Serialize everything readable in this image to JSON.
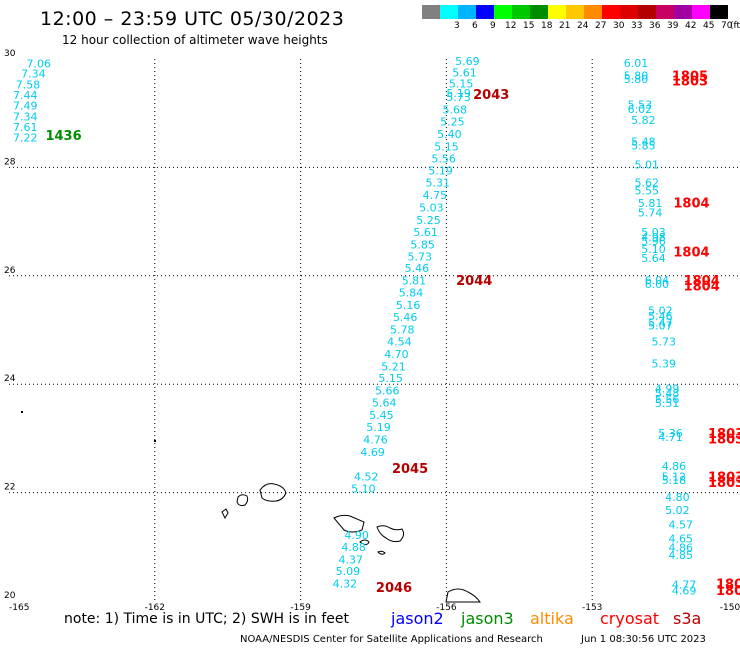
{
  "header": {
    "title": "12:00 – 23:59 UTC 05/30/2023",
    "subtitle": "12 hour collection of altimeter wave heights"
  },
  "legend": {
    "unit": "(ft)",
    "bins": [
      {
        "label": "",
        "color": "#808080"
      },
      {
        "label": "3",
        "color": "#00ffff"
      },
      {
        "label": "6",
        "color": "#00b4ff"
      },
      {
        "label": "9",
        "color": "#0000ff"
      },
      {
        "label": "12",
        "color": "#00ff00"
      },
      {
        "label": "15",
        "color": "#00c800"
      },
      {
        "label": "18",
        "color": "#008c00"
      },
      {
        "label": "21",
        "color": "#ffff00"
      },
      {
        "label": "24",
        "color": "#ffc800"
      },
      {
        "label": "27",
        "color": "#ff8c00"
      },
      {
        "label": "30",
        "color": "#ff0000"
      },
      {
        "label": "33",
        "color": "#dc0000"
      },
      {
        "label": "36",
        "color": "#b40000"
      },
      {
        "label": "39",
        "color": "#c80064"
      },
      {
        "label": "42",
        "color": "#a000a0"
      },
      {
        "label": "45",
        "color": "#ff00ff"
      },
      {
        "label": "70",
        "color": "#000000"
      }
    ]
  },
  "map": {
    "lon_range": [
      -165,
      -150
    ],
    "lat_range": [
      20,
      30
    ],
    "lon_ticks": [
      "-165",
      "-162",
      "-159",
      "-156",
      "-153",
      "-150"
    ],
    "lat_ticks": [
      "30",
      "28",
      "26",
      "24",
      "22",
      "20"
    ],
    "grid": "dotted",
    "colors": {
      "swh_text": "#00ccee",
      "jason2": "#0000ff",
      "jason3": "#008c00",
      "altika": "#ff8c00",
      "cryosat": "#ff0000",
      "s3a": "#b40000"
    },
    "tracks": [
      {
        "name": "jason3 1436",
        "color": "#00ccee",
        "label": {
          "text": "1436",
          "lon": -164.25,
          "lat": 28.6,
          "color": "#008c00"
        },
        "points": [
          {
            "v": "7.06",
            "lon": -164.64,
            "lat": 29.92
          },
          {
            "v": "7.34",
            "lon": -164.75,
            "lat": 29.73
          },
          {
            "v": "7.58",
            "lon": -164.86,
            "lat": 29.53
          },
          {
            "v": "7.44",
            "lon": -164.97,
            "lat": 29.34
          },
          {
            "v": "7.49",
            "lon": -165.07,
            "lat": 29.14
          },
          {
            "v": "7.34",
            "lon": -165.18,
            "lat": 28.94
          },
          {
            "v": "7.61",
            "lon": -165.29,
            "lat": 28.75
          },
          {
            "v": "7.22",
            "lon": -165.4,
            "lat": 28.55
          }
        ]
      },
      {
        "name": "s3a 2043-2046",
        "color": "#00ccee",
        "label_list": [
          {
            "text": "2043",
            "lon": -155.45,
            "lat": 29.35,
            "color": "#b40000"
          },
          {
            "text": "2044",
            "lon": -155.8,
            "lat": 25.92,
            "color": "#b40000"
          },
          {
            "text": "2045",
            "lon": -157.12,
            "lat": 22.45,
            "color": "#b40000"
          },
          {
            "text": "2046",
            "lon": -157.45,
            "lat": 20.26,
            "color": "#b40000"
          }
        ],
        "points": [
          {
            "v": "5.69",
            "lon": -155.82,
            "lat": 29.96
          },
          {
            "v": "5.61",
            "lon": -155.88,
            "lat": 29.75
          },
          {
            "v": "5.15",
            "lon": -155.95,
            "lat": 29.55
          },
          {
            "v": "5.19",
            "lon": -156.0,
            "lat": 29.37
          },
          {
            "v": "5.73",
            "lon": -156.0,
            "lat": 29.3
          },
          {
            "v": "5.68",
            "lon": -156.08,
            "lat": 29.07
          },
          {
            "v": "5.25",
            "lon": -156.13,
            "lat": 28.85
          },
          {
            "v": "5.40",
            "lon": -156.19,
            "lat": 28.62
          },
          {
            "v": "5.15",
            "lon": -156.25,
            "lat": 28.39
          },
          {
            "v": "5.56",
            "lon": -156.31,
            "lat": 28.16
          },
          {
            "v": "5.19",
            "lon": -156.37,
            "lat": 27.94
          },
          {
            "v": "5.31",
            "lon": -156.43,
            "lat": 27.72
          },
          {
            "v": "4.75",
            "lon": -156.49,
            "lat": 27.49
          },
          {
            "v": "5.03",
            "lon": -156.56,
            "lat": 27.26
          },
          {
            "v": "5.25",
            "lon": -156.62,
            "lat": 27.03
          },
          {
            "v": "5.61",
            "lon": -156.68,
            "lat": 26.81
          },
          {
            "v": "5.85",
            "lon": -156.74,
            "lat": 26.58
          },
          {
            "v": "5.73",
            "lon": -156.8,
            "lat": 26.36
          },
          {
            "v": "5.46",
            "lon": -156.86,
            "lat": 26.14
          },
          {
            "v": "5.81",
            "lon": -156.92,
            "lat": 25.91
          },
          {
            "v": "5.84",
            "lon": -156.98,
            "lat": 25.69
          },
          {
            "v": "5.16",
            "lon": -157.04,
            "lat": 25.46
          },
          {
            "v": "5.46",
            "lon": -157.1,
            "lat": 25.24
          },
          {
            "v": "5.78",
            "lon": -157.16,
            "lat": 25.01
          },
          {
            "v": "4.54",
            "lon": -157.22,
            "lat": 24.79
          },
          {
            "v": "4.70",
            "lon": -157.28,
            "lat": 24.56
          },
          {
            "v": "5.21",
            "lon": -157.34,
            "lat": 24.33
          },
          {
            "v": "5.15",
            "lon": -157.4,
            "lat": 24.11
          },
          {
            "v": "5.66",
            "lon": -157.47,
            "lat": 23.88
          },
          {
            "v": "5.64",
            "lon": -157.53,
            "lat": 23.66
          },
          {
            "v": "5.45",
            "lon": -157.59,
            "lat": 23.43
          },
          {
            "v": "5.19",
            "lon": -157.65,
            "lat": 23.21
          },
          {
            "v": "4.76",
            "lon": -157.71,
            "lat": 22.98
          },
          {
            "v": "4.69",
            "lon": -157.77,
            "lat": 22.75
          },
          {
            "v": "4.52",
            "lon": -157.9,
            "lat": 22.3
          },
          {
            "v": "5.10",
            "lon": -157.96,
            "lat": 22.08
          },
          {
            "v": "4.90",
            "lon": -158.1,
            "lat": 21.22
          },
          {
            "v": "4.88",
            "lon": -158.16,
            "lat": 21.0
          },
          {
            "v": "4.37",
            "lon": -158.22,
            "lat": 20.77
          },
          {
            "v": "5.09",
            "lon": -158.28,
            "lat": 20.55
          },
          {
            "v": "4.32",
            "lon": -158.34,
            "lat": 20.32
          }
        ]
      },
      {
        "name": "cryosat 1803-1805",
        "color": "#00ccee",
        "label_list": [
          {
            "text": "1805",
            "lon": -151.36,
            "lat": 29.7,
            "color": "#ff0000"
          },
          {
            "text": "1803",
            "lon": -151.36,
            "lat": 29.6,
            "color": "#ff0000"
          },
          {
            "text": "1804",
            "lon": -151.33,
            "lat": 27.35,
            "color": "#ff0000"
          },
          {
            "text": "1804",
            "lon": -151.33,
            "lat": 26.45,
            "color": "#ff0000"
          },
          {
            "text": "1804",
            "lon": -151.12,
            "lat": 25.92,
            "color": "#ff0000"
          },
          {
            "text": "1804",
            "lon": -151.12,
            "lat": 25.82,
            "color": "#ff0000"
          },
          {
            "text": "1803",
            "lon": -150.56,
            "lat": 23.1,
            "color": "#ff0000"
          },
          {
            "text": "1803",
            "lon": -150.56,
            "lat": 23.0,
            "color": "#ff0000"
          },
          {
            "text": "1803",
            "lon": -150.56,
            "lat": 22.3,
            "color": "#ff0000"
          },
          {
            "text": "1803",
            "lon": -150.56,
            "lat": 22.2,
            "color": "#ff0000"
          },
          {
            "text": "180",
            "lon": -150.25,
            "lat": 20.32,
            "color": "#ff0000"
          },
          {
            "text": "180",
            "lon": -150.25,
            "lat": 20.2,
            "color": "#ff0000"
          }
        ],
        "points": [
          {
            "v": "6.01",
            "lon": -152.35,
            "lat": 29.93
          },
          {
            "v": "5.80",
            "lon": -152.35,
            "lat": 29.7
          },
          {
            "v": "5.80",
            "lon": -152.35,
            "lat": 29.63
          },
          {
            "v": "5.53",
            "lon": -152.27,
            "lat": 29.16
          },
          {
            "v": "6.02",
            "lon": -152.27,
            "lat": 29.08
          },
          {
            "v": "5.82",
            "lon": -152.2,
            "lat": 28.87
          },
          {
            "v": "5.48",
            "lon": -152.2,
            "lat": 28.48
          },
          {
            "v": "5.85",
            "lon": -152.2,
            "lat": 28.4
          },
          {
            "v": "5.01",
            "lon": -152.13,
            "lat": 28.05
          },
          {
            "v": "5.62",
            "lon": -152.13,
            "lat": 27.72
          },
          {
            "v": "5.55",
            "lon": -152.13,
            "lat": 27.57
          },
          {
            "v": "5.81",
            "lon": -152.06,
            "lat": 27.34
          },
          {
            "v": "5.74",
            "lon": -152.06,
            "lat": 27.17
          },
          {
            "v": "5.03",
            "lon": -151.99,
            "lat": 26.81
          },
          {
            "v": "4.98",
            "lon": -151.99,
            "lat": 26.72
          },
          {
            "v": "5.96",
            "lon": -151.99,
            "lat": 26.64
          },
          {
            "v": "5.10",
            "lon": -151.99,
            "lat": 26.49
          },
          {
            "v": "5.64",
            "lon": -151.99,
            "lat": 26.33
          },
          {
            "v": "6.04",
            "lon": -151.92,
            "lat": 25.92
          },
          {
            "v": "6.00",
            "lon": -151.92,
            "lat": 25.85
          },
          {
            "v": "5.02",
            "lon": -151.85,
            "lat": 25.36
          },
          {
            "v": "5.46",
            "lon": -151.85,
            "lat": 25.26
          },
          {
            "v": "5.47",
            "lon": -151.85,
            "lat": 25.14
          },
          {
            "v": "5.07",
            "lon": -151.85,
            "lat": 25.08
          },
          {
            "v": "5.73",
            "lon": -151.78,
            "lat": 24.79
          },
          {
            "v": "5.39",
            "lon": -151.78,
            "lat": 24.38
          },
          {
            "v": "4.99",
            "lon": -151.71,
            "lat": 23.92
          },
          {
            "v": "5.48",
            "lon": -151.71,
            "lat": 23.84
          },
          {
            "v": "5.56",
            "lon": -151.71,
            "lat": 23.73
          },
          {
            "v": "5.51",
            "lon": -151.71,
            "lat": 23.65
          },
          {
            "v": "5.36",
            "lon": -151.64,
            "lat": 23.1
          },
          {
            "v": "4.71",
            "lon": -151.64,
            "lat": 23.03
          },
          {
            "v": "4.86",
            "lon": -151.57,
            "lat": 22.49
          },
          {
            "v": "5.12",
            "lon": -151.57,
            "lat": 22.3
          },
          {
            "v": "5.18",
            "lon": -151.57,
            "lat": 22.23
          },
          {
            "v": "4.80",
            "lon": -151.5,
            "lat": 21.92
          },
          {
            "v": "5.02",
            "lon": -151.5,
            "lat": 21.68
          },
          {
            "v": "4.57",
            "lon": -151.43,
            "lat": 21.41
          },
          {
            "v": "4.65",
            "lon": -151.43,
            "lat": 21.15
          },
          {
            "v": "4.86",
            "lon": -151.43,
            "lat": 20.99
          },
          {
            "v": "4.85",
            "lon": -151.43,
            "lat": 20.85
          },
          {
            "v": "4.77",
            "lon": -151.36,
            "lat": 20.3
          },
          {
            "v": "4.69",
            "lon": -151.36,
            "lat": 20.19
          }
        ]
      }
    ]
  },
  "footer": {
    "note": "note:  1) Time is in UTC;  2) SWH is in feet",
    "satellites": [
      {
        "name": "jason2",
        "color": "#0000ff"
      },
      {
        "name": "jason3",
        "color": "#008c00"
      },
      {
        "name": "altika",
        "color": "#ff8c00"
      },
      {
        "name": "cryosat",
        "color": "#ff0000"
      },
      {
        "name": "s3a",
        "color": "#b40000"
      }
    ],
    "credit": "NOAA/NESDIS Center for Satellite Applications and Research",
    "generated": "Jun  1 08:30:56 UTC 2023"
  }
}
